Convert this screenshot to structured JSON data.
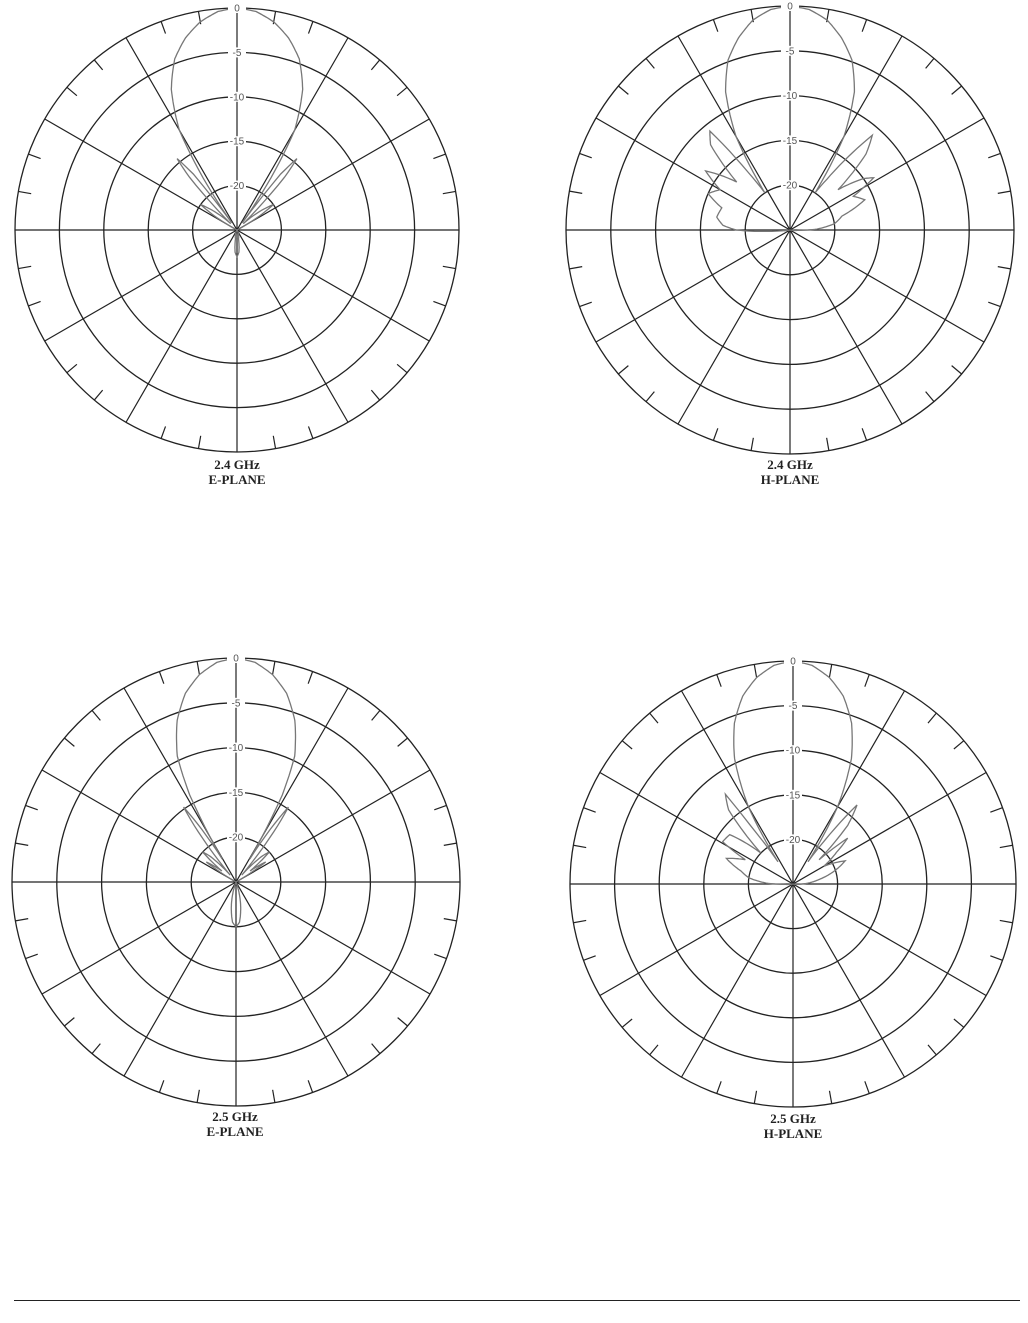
{
  "chart_data": [
    {
      "type": "polar-line",
      "title": "2.4 GHz",
      "subtitle": "E-PLANE",
      "radial_tick_labels": [
        "0",
        "-5",
        "-10",
        "-15",
        "-20"
      ],
      "radial_range_db": [
        -25,
        0
      ],
      "angular_grid_deg": 30,
      "angular_minor_tick_deg": 10,
      "grid": true,
      "trace_color": "#777777",
      "grid_color": "#222222",
      "points_angle_deg_gain_db": [
        [
          -180,
          -22
        ],
        [
          -175,
          -22.5
        ],
        [
          -170,
          -24
        ],
        [
          -150,
          -25
        ],
        [
          -90,
          -25
        ],
        [
          -62,
          -25
        ],
        [
          -58,
          -22
        ],
        [
          -55,
          -20
        ],
        [
          -50,
          -22
        ],
        [
          -45,
          -24
        ],
        [
          -42,
          -17
        ],
        [
          -40,
          -14.5
        ],
        [
          -38,
          -17
        ],
        [
          -36,
          -24
        ],
        [
          -34,
          -20
        ],
        [
          -30,
          -12
        ],
        [
          -25,
          -7.5
        ],
        [
          -20,
          -4.5
        ],
        [
          -15,
          -2.6
        ],
        [
          -10,
          -1.2
        ],
        [
          -5,
          -0.3
        ],
        [
          0,
          0
        ],
        [
          5,
          -0.3
        ],
        [
          10,
          -1.2
        ],
        [
          15,
          -2.6
        ],
        [
          20,
          -4.5
        ],
        [
          25,
          -7.5
        ],
        [
          30,
          -12
        ],
        [
          34,
          -20
        ],
        [
          36,
          -24
        ],
        [
          38,
          -17
        ],
        [
          40,
          -14.5
        ],
        [
          42,
          -17
        ],
        [
          45,
          -24
        ],
        [
          50,
          -22
        ],
        [
          55,
          -20
        ],
        [
          58,
          -22
        ],
        [
          62,
          -25
        ],
        [
          90,
          -25
        ],
        [
          150,
          -25
        ],
        [
          170,
          -24
        ],
        [
          175,
          -22.5
        ],
        [
          180,
          -22
        ]
      ]
    },
    {
      "type": "polar-line",
      "title": "2.4 GHz",
      "subtitle": "H-PLANE",
      "radial_tick_labels": [
        "0",
        "-5",
        "-10",
        "-15",
        "-20"
      ],
      "radial_range_db": [
        -25,
        0
      ],
      "angular_grid_deg": 30,
      "angular_minor_tick_deg": 10,
      "grid": true,
      "trace_color": "#777777",
      "grid_color": "#222222",
      "points_angle_deg_gain_db": [
        [
          -180,
          -25
        ],
        [
          -100,
          -25
        ],
        [
          -95,
          -24
        ],
        [
          -90,
          -19
        ],
        [
          -86,
          -17.5
        ],
        [
          -80,
          -16.7
        ],
        [
          -72,
          -17
        ],
        [
          -66,
          -15
        ],
        [
          -60,
          -16
        ],
        [
          -55,
          -13.5
        ],
        [
          -52,
          -15
        ],
        [
          -48,
          -17
        ],
        [
          -43,
          -12
        ],
        [
          -39,
          -10.8
        ],
        [
          -36,
          -17
        ],
        [
          -34,
          -20
        ],
        [
          -30,
          -13
        ],
        [
          -25,
          -8
        ],
        [
          -20,
          -4.8
        ],
        [
          -15,
          -2.8
        ],
        [
          -10,
          -1.2
        ],
        [
          -5,
          -0.3
        ],
        [
          0,
          0
        ],
        [
          5,
          -0.3
        ],
        [
          10,
          -1.2
        ],
        [
          15,
          -2.8
        ],
        [
          20,
          -4.8
        ],
        [
          25,
          -8
        ],
        [
          30,
          -13
        ],
        [
          34,
          -20
        ],
        [
          36,
          -18
        ],
        [
          41,
          -11
        ],
        [
          45,
          -13
        ],
        [
          50,
          -18
        ],
        [
          55,
          -15
        ],
        [
          58,
          -14
        ],
        [
          62,
          -17
        ],
        [
          68,
          -16
        ],
        [
          75,
          -19
        ],
        [
          82,
          -20
        ],
        [
          88,
          -22
        ],
        [
          92,
          -24
        ],
        [
          100,
          -25
        ],
        [
          180,
          -25
        ]
      ]
    },
    {
      "type": "polar-line",
      "title": "2.5 GHz",
      "subtitle": "E-PLANE",
      "radial_tick_labels": [
        "0",
        "-5",
        "-10",
        "-15",
        "-20"
      ],
      "radial_range_db": [
        -25,
        0
      ],
      "angular_grid_deg": 30,
      "angular_minor_tick_deg": 10,
      "grid": true,
      "trace_color": "#777777",
      "grid_color": "#222222",
      "points_angle_deg_gain_db": [
        [
          -180,
          -20
        ],
        [
          -175,
          -20.5
        ],
        [
          -170,
          -22
        ],
        [
          -160,
          -25
        ],
        [
          -60,
          -25
        ],
        [
          -56,
          -21
        ],
        [
          -52,
          -23
        ],
        [
          -48,
          -20
        ],
        [
          -45,
          -21
        ],
        [
          -40,
          -24
        ],
        [
          -37,
          -18
        ],
        [
          -35,
          -14.8
        ],
        [
          -33,
          -18
        ],
        [
          -31,
          -22
        ],
        [
          -28,
          -14
        ],
        [
          -25,
          -9.5
        ],
        [
          -20,
          -5.8
        ],
        [
          -15,
          -3.2
        ],
        [
          -10,
          -1.5
        ],
        [
          -5,
          -0.4
        ],
        [
          0,
          0
        ],
        [
          5,
          -0.4
        ],
        [
          10,
          -1.5
        ],
        [
          15,
          -3.2
        ],
        [
          20,
          -5.8
        ],
        [
          25,
          -9.5
        ],
        [
          28,
          -14
        ],
        [
          31,
          -22
        ],
        [
          33,
          -18
        ],
        [
          35,
          -14.8
        ],
        [
          37,
          -18
        ],
        [
          40,
          -24
        ],
        [
          45,
          -21
        ],
        [
          48,
          -20
        ],
        [
          52,
          -23
        ],
        [
          56,
          -21
        ],
        [
          60,
          -25
        ],
        [
          160,
          -25
        ],
        [
          170,
          -22
        ],
        [
          175,
          -20.5
        ],
        [
          180,
          -20
        ]
      ]
    },
    {
      "type": "polar-line",
      "title": "2.5 GHz",
      "subtitle": "H-PLANE",
      "radial_tick_labels": [
        "0",
        "-5",
        "-10",
        "-15",
        "-20"
      ],
      "radial_range_db": [
        -25,
        0
      ],
      "angular_grid_deg": 30,
      "angular_minor_tick_deg": 10,
      "grid": true,
      "trace_color": "#777777",
      "grid_color": "#222222",
      "points_angle_deg_gain_db": [
        [
          -180,
          -25
        ],
        [
          -100,
          -25
        ],
        [
          -92,
          -24
        ],
        [
          -88,
          -22
        ],
        [
          -82,
          -20
        ],
        [
          -76,
          -19
        ],
        [
          -69,
          -17
        ],
        [
          -63,
          -19
        ],
        [
          -59,
          -15.8
        ],
        [
          -52,
          -16
        ],
        [
          -46,
          -20
        ],
        [
          -41,
          -14
        ],
        [
          -37,
          -12.4
        ],
        [
          -36,
          -17
        ],
        [
          -34,
          -22
        ],
        [
          -30,
          -15
        ],
        [
          -25,
          -9.5
        ],
        [
          -20,
          -5.8
        ],
        [
          -15,
          -3.2
        ],
        [
          -10,
          -1.5
        ],
        [
          -5,
          -0.4
        ],
        [
          0,
          0
        ],
        [
          5,
          -0.4
        ],
        [
          10,
          -1.5
        ],
        [
          15,
          -3.2
        ],
        [
          20,
          -5.8
        ],
        [
          25,
          -9.5
        ],
        [
          30,
          -15
        ],
        [
          34,
          -22
        ],
        [
          36,
          -19
        ],
        [
          39,
          -13.6
        ],
        [
          43,
          -16
        ],
        [
          47,
          -21
        ],
        [
          50,
          -17
        ],
        [
          54,
          -19
        ],
        [
          60,
          -21
        ],
        [
          66,
          -18.6
        ],
        [
          72,
          -20
        ],
        [
          80,
          -22
        ],
        [
          90,
          -24
        ],
        [
          100,
          -25
        ],
        [
          180,
          -25
        ]
      ]
    }
  ]
}
